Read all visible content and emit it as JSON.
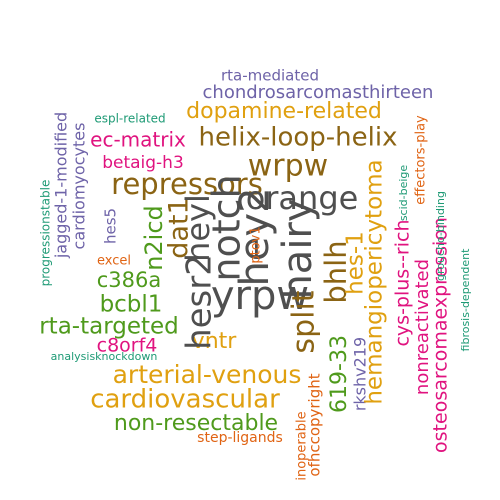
{
  "word_cloud": {
    "colors": {
      "gray": "#4f4f4f",
      "brown": "#8b6414",
      "gold": "#e0a010",
      "green": "#4f9a1c",
      "magenta": "#e0137f",
      "purple": "#6e63a8",
      "teal": "#1e9a75",
      "orange": "#e06414"
    },
    "words": [
      {
        "text": "rta-mediated",
        "color": "purple"
      },
      {
        "text": "chondrosarcomasthirteen",
        "color": "purple"
      },
      {
        "text": "dopamine-related",
        "color": "gold"
      },
      {
        "text": "helix-loop-helix",
        "color": "brown"
      },
      {
        "text": "ec-matrix",
        "color": "magenta"
      },
      {
        "text": "betaig-h3",
        "color": "magenta"
      },
      {
        "text": "wrpw",
        "color": "brown"
      },
      {
        "text": "repressors",
        "color": "brown"
      },
      {
        "text": "orange",
        "color": "gray"
      },
      {
        "text": "espl-related",
        "color": "teal"
      },
      {
        "text": "jagged-1-modified",
        "color": "purple"
      },
      {
        "text": "cardiomyocytes",
        "color": "purple"
      },
      {
        "text": "progressionstable",
        "color": "teal"
      },
      {
        "text": "hes5",
        "color": "purple"
      },
      {
        "text": "excel",
        "color": "orange"
      },
      {
        "text": "c386a",
        "color": "green"
      },
      {
        "text": "bcbl1",
        "color": "green"
      },
      {
        "text": "rta-targeted",
        "color": "green"
      },
      {
        "text": "c8orf4",
        "color": "magenta"
      },
      {
        "text": "analysisknockdown",
        "color": "teal"
      },
      {
        "text": "arterial-venous",
        "color": "gold"
      },
      {
        "text": "cardiovascular",
        "color": "gold"
      },
      {
        "text": "non-resectable",
        "color": "green"
      },
      {
        "text": "step-ligands",
        "color": "orange"
      },
      {
        "text": "inoperable",
        "color": "orange"
      },
      {
        "text": "ofhccopyright",
        "color": "orange"
      },
      {
        "text": "vntr",
        "color": "gold"
      },
      {
        "text": "n2icd",
        "color": "green"
      },
      {
        "text": "dat1",
        "color": "brown"
      },
      {
        "text": "hesr2",
        "color": "gray"
      },
      {
        "text": "heyl",
        "color": "gray"
      },
      {
        "text": "notch",
        "color": "gray"
      },
      {
        "text": "hey2",
        "color": "gray"
      },
      {
        "text": "yrpw",
        "color": "gray"
      },
      {
        "text": "hairy",
        "color": "gray"
      },
      {
        "text": "split",
        "color": "brown"
      },
      {
        "text": "ptov1",
        "color": "orange"
      },
      {
        "text": "bhlh",
        "color": "brown"
      },
      {
        "text": "619-33",
        "color": "green"
      },
      {
        "text": "rkshv219",
        "color": "purple"
      },
      {
        "text": "hes-1",
        "color": "gold"
      },
      {
        "text": "hemangiopericytoma",
        "color": "gold"
      },
      {
        "text": "cys-plus--rich",
        "color": "magenta"
      },
      {
        "text": "nonreactivated",
        "color": "magenta"
      },
      {
        "text": "osteosarcomaexpression",
        "color": "magenta"
      },
      {
        "text": "effectors-play",
        "color": "orange"
      },
      {
        "text": "scid-beige",
        "color": "teal"
      },
      {
        "text": "groucho-binding",
        "color": "teal"
      },
      {
        "text": "fibrosis-dependent",
        "color": "teal"
      }
    ]
  }
}
